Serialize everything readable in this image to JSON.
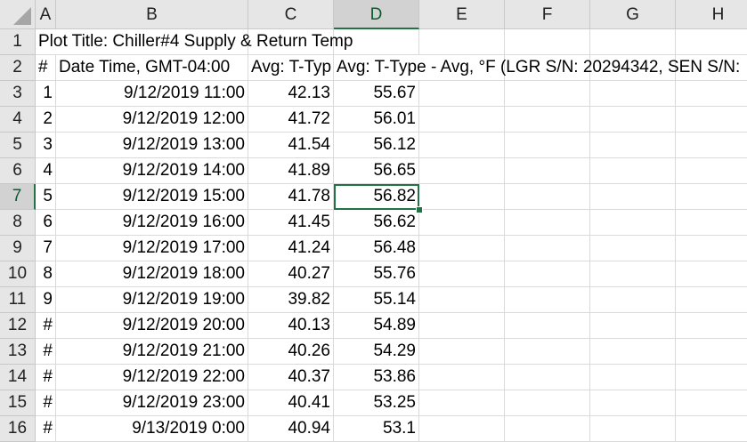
{
  "columns": [
    "A",
    "B",
    "C",
    "D",
    "E",
    "F",
    "G",
    "H"
  ],
  "active_column": "D",
  "active_row": "7",
  "title_cell": "Plot Title: Chiller#4 Supply & Return Temp",
  "header_row": {
    "a": "#",
    "b": "Date Time, GMT-04:00",
    "c": "Avg: T-Typ",
    "d": "Avg: T-Type - Avg, °F (LGR S/N: 20294342, SEN S/N:"
  },
  "rows": [
    {
      "num": "3",
      "a": "1",
      "b": "9/12/2019 11:00",
      "c": "42.13",
      "d": "55.67"
    },
    {
      "num": "4",
      "a": "2",
      "b": "9/12/2019 12:00",
      "c": "41.72",
      "d": "56.01"
    },
    {
      "num": "5",
      "a": "3",
      "b": "9/12/2019 13:00",
      "c": "41.54",
      "d": "56.12"
    },
    {
      "num": "6",
      "a": "4",
      "b": "9/12/2019 14:00",
      "c": "41.89",
      "d": "56.65"
    },
    {
      "num": "7",
      "a": "5",
      "b": "9/12/2019 15:00",
      "c": "41.78",
      "d": "56.82"
    },
    {
      "num": "8",
      "a": "6",
      "b": "9/12/2019 16:00",
      "c": "41.45",
      "d": "56.62"
    },
    {
      "num": "9",
      "a": "7",
      "b": "9/12/2019 17:00",
      "c": "41.24",
      "d": "56.48"
    },
    {
      "num": "10",
      "a": "8",
      "b": "9/12/2019 18:00",
      "c": "40.27",
      "d": "55.76"
    },
    {
      "num": "11",
      "a": "9",
      "b": "9/12/2019 19:00",
      "c": "39.82",
      "d": "55.14"
    },
    {
      "num": "12",
      "a": "#",
      "b": "9/12/2019 20:00",
      "c": "40.13",
      "d": "54.89"
    },
    {
      "num": "13",
      "a": "#",
      "b": "9/12/2019 21:00",
      "c": "40.26",
      "d": "54.29"
    },
    {
      "num": "14",
      "a": "#",
      "b": "9/12/2019 22:00",
      "c": "40.37",
      "d": "53.86"
    },
    {
      "num": "15",
      "a": "#",
      "b": "9/12/2019 23:00",
      "c": "40.41",
      "d": "53.25"
    },
    {
      "num": "16",
      "a": "#",
      "b": "9/13/2019 0:00",
      "c": "40.94",
      "d": "53.1"
    }
  ],
  "colors": {
    "selection": "#217346",
    "header_bg": "#e6e6e6",
    "gridline": "#dadada"
  }
}
